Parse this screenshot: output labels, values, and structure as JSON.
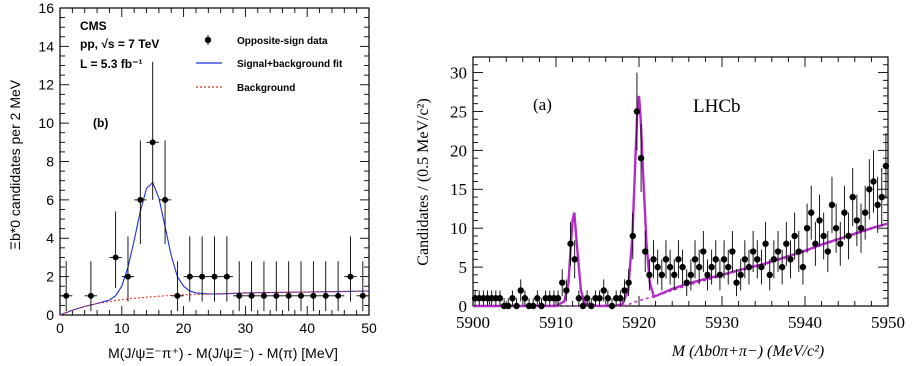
{
  "chart_data": [
    {
      "type": "scatter",
      "panel_label": "(b)",
      "experiment": "CMS",
      "info_line_1": "pp, √s = 7 TeV",
      "info_line_2": "L = 5.3 fb⁻¹",
      "xlabel": "M(J/ψΞ⁻π⁺) - M(J/ψΞ⁻) - M(π) [MeV]",
      "ylabel": "Ξb*0 candidates per 2 MeV",
      "xlim": [
        0,
        50
      ],
      "ylim": [
        0,
        16
      ],
      "x_ticks": [
        "0",
        "10",
        "20",
        "30",
        "40",
        "50"
      ],
      "y_ticks": [
        "0",
        "2",
        "4",
        "6",
        "8",
        "10",
        "12",
        "14",
        "16"
      ],
      "legend_position": "top-right",
      "legend": [
        "Opposite-sign data",
        "Signal+background fit",
        "Background"
      ],
      "colors": {
        "data": "#000000",
        "fit": "#1a2fd6",
        "background": "#e0302a"
      },
      "series": [
        {
          "name": "Opposite-sign data",
          "kind": "points",
          "x": [
            1,
            5,
            9,
            11,
            13,
            15,
            17,
            19,
            21,
            23,
            25,
            27,
            29,
            31,
            33,
            35,
            37,
            39,
            41,
            43,
            45,
            47,
            49
          ],
          "y": [
            1,
            1,
            3,
            2,
            6,
            9,
            6,
            1,
            2,
            2,
            2,
            2,
            1,
            1,
            1,
            1,
            1,
            1,
            1,
            1,
            1,
            2,
            1
          ],
          "y_err_up": [
            1.8,
            1.8,
            2.4,
            2.1,
            3.1,
            4.2,
            3.1,
            1.8,
            2.1,
            2.1,
            2.1,
            2.1,
            1.8,
            1.8,
            1.8,
            1.8,
            1.8,
            1.8,
            1.8,
            1.8,
            1.8,
            2.1,
            1.8
          ],
          "y_err_down": [
            0.8,
            0.8,
            1.6,
            1.3,
            2.3,
            3.0,
            2.3,
            0.8,
            1.3,
            1.3,
            1.3,
            1.3,
            0.8,
            0.8,
            0.8,
            0.8,
            0.8,
            0.8,
            0.8,
            0.8,
            0.8,
            1.3,
            0.8
          ],
          "x_err": 1
        },
        {
          "name": "Signal+background fit",
          "kind": "curve",
          "x": [
            0,
            2,
            4,
            6,
            8,
            9,
            10,
            11,
            12,
            13,
            14,
            15,
            16,
            17,
            18,
            19,
            20,
            21,
            22,
            24,
            26,
            30,
            35,
            40,
            45,
            50
          ],
          "y": [
            0,
            0.25,
            0.45,
            0.6,
            0.78,
            1.0,
            1.5,
            2.5,
            3.9,
            5.4,
            6.6,
            6.9,
            6.1,
            4.6,
            3.1,
            2.0,
            1.5,
            1.25,
            1.15,
            1.1,
            1.1,
            1.15,
            1.18,
            1.2,
            1.22,
            1.25
          ]
        },
        {
          "name": "Background",
          "kind": "curve",
          "x": [
            0,
            2,
            4,
            6,
            8,
            10,
            12,
            14,
            16,
            18,
            20,
            25,
            30,
            35,
            40,
            45,
            50
          ],
          "y": [
            0,
            0.25,
            0.45,
            0.6,
            0.7,
            0.8,
            0.87,
            0.93,
            0.98,
            1.02,
            1.05,
            1.1,
            1.15,
            1.18,
            1.2,
            1.22,
            1.25
          ]
        }
      ]
    },
    {
      "type": "scatter",
      "panel_label": "(a)",
      "experiment": "LHCb",
      "xlabel": "M (Λb0π+π−) (MeV/c²)",
      "ylabel": "Candidates / (0.5 MeV/c²)",
      "xlim": [
        5900,
        5950
      ],
      "ylim": [
        0,
        32
      ],
      "x_ticks": [
        "5900",
        "5910",
        "5920",
        "5930",
        "5940",
        "5950"
      ],
      "y_ticks": [
        "0",
        "5",
        "10",
        "15",
        "20",
        "25",
        "30"
      ],
      "colors": {
        "data": "#000000",
        "fit": "#b42ac8"
      },
      "series": [
        {
          "name": "",
          "kind": "points",
          "x": [
            5900.25,
            5900.75,
            5901.25,
            5901.75,
            5902.25,
            5902.75,
            5903.25,
            5903.75,
            5904.25,
            5904.75,
            5905.25,
            5905.75,
            5906.25,
            5906.75,
            5907.25,
            5907.75,
            5908.25,
            5908.75,
            5909.25,
            5909.75,
            5910.25,
            5910.75,
            5911.25,
            5911.75,
            5912.25,
            5912.75,
            5913.25,
            5913.75,
            5914.25,
            5914.75,
            5915.25,
            5915.75,
            5916.25,
            5916.75,
            5917.25,
            5917.75,
            5918.25,
            5918.75,
            5919.25,
            5919.75,
            5920.25,
            5920.75,
            5921.25,
            5921.75,
            5922.25,
            5922.75,
            5923.25,
            5923.75,
            5924.25,
            5924.75,
            5925.25,
            5925.75,
            5926.25,
            5926.75,
            5927.25,
            5927.75,
            5928.25,
            5928.75,
            5929.25,
            5929.75,
            5930.25,
            5930.75,
            5931.25,
            5931.75,
            5932.25,
            5932.75,
            5933.25,
            5933.75,
            5934.25,
            5934.75,
            5935.25,
            5935.75,
            5936.25,
            5936.75,
            5937.25,
            5937.75,
            5938.25,
            5938.75,
            5939.25,
            5939.75,
            5940.25,
            5940.75,
            5941.25,
            5941.75,
            5942.25,
            5942.75,
            5943.25,
            5943.75,
            5944.25,
            5944.75,
            5945.25,
            5945.75,
            5946.25,
            5946.75,
            5947.25,
            5947.75,
            5948.25,
            5948.75,
            5949.25,
            5949.75
          ],
          "y": [
            1,
            1,
            1,
            1,
            1,
            1,
            1,
            0,
            0,
            1,
            0,
            2,
            1,
            0,
            0,
            1,
            0,
            1,
            1,
            1,
            1,
            3,
            2,
            8,
            6,
            1,
            0,
            1,
            0,
            1,
            1,
            2,
            1,
            0,
            1,
            1,
            2,
            3,
            9,
            25,
            19,
            7,
            4,
            6,
            5,
            4,
            6,
            5,
            4,
            6,
            5,
            3,
            4,
            6,
            5,
            7,
            4,
            5,
            6,
            4,
            6,
            5,
            7,
            3,
            4,
            6,
            5,
            7,
            6,
            5,
            8,
            4,
            6,
            7,
            5,
            8,
            6,
            9,
            7,
            5,
            10,
            12,
            8,
            11,
            9,
            7,
            13,
            10,
            8,
            12,
            9,
            14,
            11,
            10,
            12,
            15,
            16,
            13,
            14,
            18
          ],
          "y_err": "sqrt"
        },
        {
          "name": "",
          "kind": "curve",
          "x": [
            5900,
            5905,
            5908,
            5910,
            5911,
            5911.5,
            5911.8,
            5912,
            5912.2,
            5912.5,
            5913,
            5913.5,
            5915,
            5917,
            5918,
            5918.7,
            5919.2,
            5919.6,
            5919.8,
            5920,
            5920.2,
            5920.5,
            5920.9,
            5921.3,
            5921.8,
            5922.5,
            5924,
            5926,
            5928,
            5930,
            5932,
            5935,
            5938,
            5940,
            5942,
            5944,
            5946,
            5948,
            5950
          ],
          "y": [
            0,
            0,
            0,
            0,
            0.6,
            3,
            8,
            11,
            12,
            8,
            2,
            0.3,
            0,
            0,
            0.2,
            2,
            9,
            20,
            25,
            27,
            24,
            17,
            8,
            3,
            1.2,
            1.5,
            2.2,
            2.9,
            3.5,
            4,
            4.6,
            5.4,
            6.4,
            7.1,
            7.9,
            8.6,
            9.3,
            10,
            10.6
          ]
        },
        {
          "name": "",
          "kind": "dashed",
          "x": [
            5900,
            5905,
            5908,
            5910,
            5912,
            5914,
            5916,
            5918,
            5919,
            5920,
            5921,
            5922,
            5924,
            5926,
            5928,
            5930,
            5932,
            5935,
            5938,
            5940,
            5942,
            5944,
            5946,
            5948,
            5950
          ],
          "y": [
            0,
            0,
            0,
            0,
            0,
            0,
            0,
            0,
            0.3,
            0.7,
            1.0,
            1.3,
            2.0,
            2.7,
            3.3,
            3.9,
            4.5,
            5.3,
            6.3,
            7.0,
            7.8,
            8.5,
            9.2,
            9.9,
            10.6
          ]
        }
      ]
    }
  ]
}
